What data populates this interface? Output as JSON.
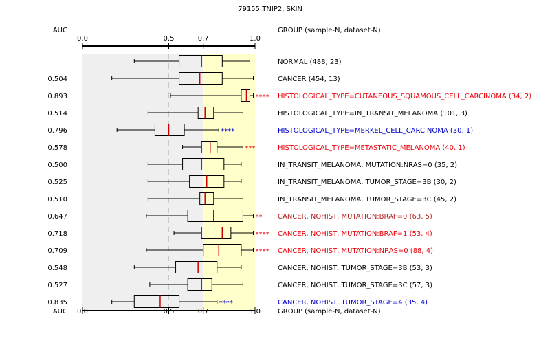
{
  "chart_data": {
    "type": "boxplot",
    "title": "79155:TNIP2, SKIN",
    "auc_label": "AUC",
    "group_header": "GROUP (sample-N, dataset-N)",
    "x_ticks": [
      "0.0",
      "0.5",
      "0.7",
      "1.0"
    ],
    "xlim": [
      0.0,
      1.0
    ],
    "reference_line": 0.5,
    "shaded_region": {
      "gray": [
        0.0,
        0.7
      ],
      "yellow": [
        0.7,
        1.0
      ]
    },
    "colors": {
      "black": "#000000",
      "red": "#e8000b",
      "blue": "#0000cc",
      "dark_red": "#b22222",
      "median": "#cc0000",
      "gray_bg": "#efefef",
      "yellow_bg": "#ffffcc"
    },
    "groups": [
      {
        "label": "NORMAL (488, 23)",
        "auc": "",
        "stars": "",
        "color": "black",
        "wl": 0.3,
        "q1": 0.56,
        "med": 0.69,
        "q3": 0.81,
        "wh": 0.97
      },
      {
        "label": "CANCER (454, 13)",
        "auc": "0.504",
        "stars": "",
        "color": "black",
        "wl": 0.17,
        "q1": 0.56,
        "med": 0.68,
        "q3": 0.81,
        "wh": 0.99
      },
      {
        "label": "HISTOLOGICAL_TYPE=CUTANEOUS_SQUAMOUS_CELL_CARCINOMA (34, 2)",
        "auc": "0.893",
        "stars": "****",
        "color": "red",
        "wl": 0.51,
        "q1": 0.92,
        "med": 0.95,
        "q3": 0.97,
        "wh": 0.99
      },
      {
        "label": "HISTOLOGICAL_TYPE=IN_TRANSIT_MELANOMA (101, 3)",
        "auc": "0.514",
        "stars": "",
        "color": "black",
        "wl": 0.38,
        "q1": 0.67,
        "med": 0.71,
        "q3": 0.76,
        "wh": 0.93
      },
      {
        "label": "HISTOLOGICAL_TYPE=MERKEL_CELL_CARCINOMA (30, 1)",
        "auc": "0.796",
        "stars": "****",
        "color": "blue",
        "wl": 0.2,
        "q1": 0.42,
        "med": 0.5,
        "q3": 0.59,
        "wh": 0.79
      },
      {
        "label": "HISTOLOGICAL_TYPE=METASTATIC_MELANOMA (40, 1)",
        "auc": "0.578",
        "stars": "***",
        "color": "red",
        "wl": 0.58,
        "q1": 0.69,
        "med": 0.74,
        "q3": 0.78,
        "wh": 0.93
      },
      {
        "label": "IN_TRANSIT_MELANOMA, MUTATION:NRAS=0 (35, 2)",
        "auc": "0.500",
        "stars": "",
        "color": "black",
        "wl": 0.38,
        "q1": 0.58,
        "med": 0.69,
        "q3": 0.82,
        "wh": 0.92
      },
      {
        "label": "IN_TRANSIT_MELANOMA, TUMOR_STAGE=3B (30, 2)",
        "auc": "0.525",
        "stars": "",
        "color": "black",
        "wl": 0.38,
        "q1": 0.62,
        "med": 0.72,
        "q3": 0.82,
        "wh": 0.92
      },
      {
        "label": "IN_TRANSIT_MELANOMA, TUMOR_STAGE=3C (45, 2)",
        "auc": "0.510",
        "stars": "",
        "color": "black",
        "wl": 0.38,
        "q1": 0.68,
        "med": 0.71,
        "q3": 0.76,
        "wh": 0.93
      },
      {
        "label": "CANCER, NOHIST, MUTATION:BRAF=0 (63, 5)",
        "auc": "0.647",
        "stars": "**",
        "color": "dark_red",
        "wl": 0.37,
        "q1": 0.61,
        "med": 0.76,
        "q3": 0.93,
        "wh": 0.99
      },
      {
        "label": "CANCER, NOHIST, MUTATION:BRAF=1 (53, 4)",
        "auc": "0.718",
        "stars": "****",
        "color": "red",
        "wl": 0.53,
        "q1": 0.69,
        "med": 0.81,
        "q3": 0.86,
        "wh": 0.99
      },
      {
        "label": "CANCER, NOHIST, MUTATION:NRAS=0 (88, 4)",
        "auc": "0.709",
        "stars": "****",
        "color": "red",
        "wl": 0.37,
        "q1": 0.7,
        "med": 0.79,
        "q3": 0.92,
        "wh": 0.99
      },
      {
        "label": "CANCER, NOHIST, TUMOR_STAGE=3B (53, 3)",
        "auc": "0.548",
        "stars": "",
        "color": "black",
        "wl": 0.3,
        "q1": 0.54,
        "med": 0.67,
        "q3": 0.78,
        "wh": 0.92
      },
      {
        "label": "CANCER, NOHIST, TUMOR_STAGE=3C (57, 3)",
        "auc": "0.527",
        "stars": "",
        "color": "black",
        "wl": 0.39,
        "q1": 0.61,
        "med": 0.69,
        "q3": 0.75,
        "wh": 0.93
      },
      {
        "label": "CANCER, NOHIST, TUMOR_STAGE=4 (35, 4)",
        "auc": "0.835",
        "stars": "****",
        "color": "blue",
        "wl": 0.17,
        "q1": 0.3,
        "med": 0.45,
        "q3": 0.56,
        "wh": 0.78
      }
    ]
  }
}
